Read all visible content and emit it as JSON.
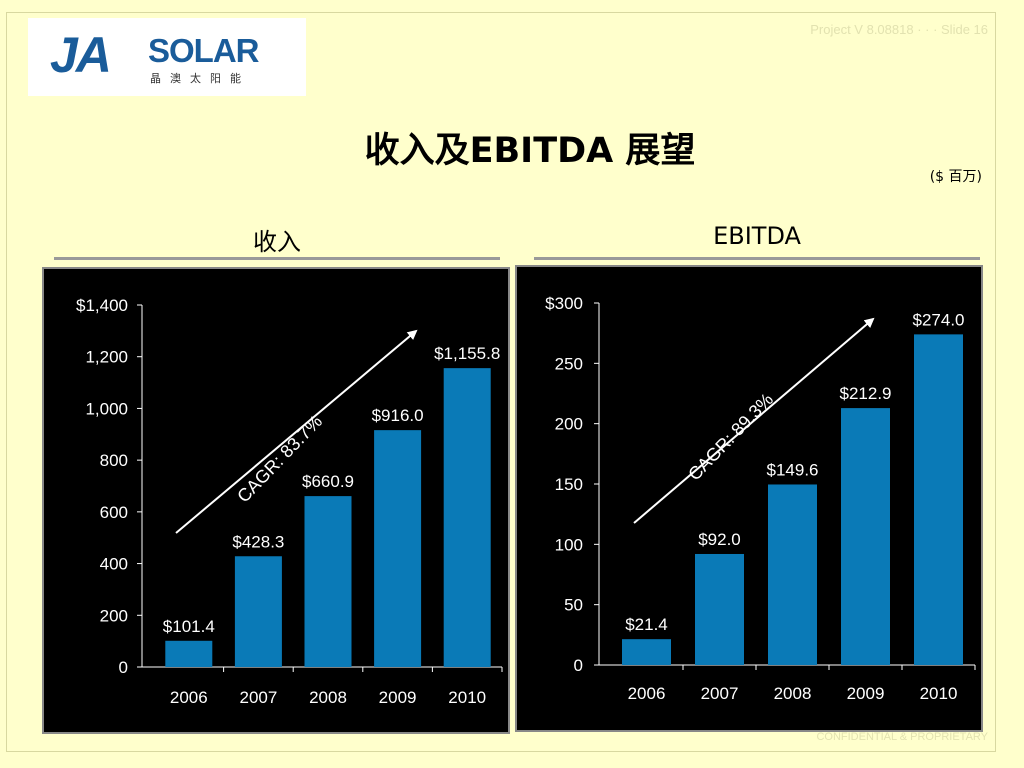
{
  "header": {
    "logo_main": "JA",
    "logo_solar": "SOLAR",
    "logo_cn": "晶澳太阳能",
    "note": "Project V  8.08818   ·  ·  ·  Slide 16"
  },
  "title": "收入及EBITDA 展望",
  "units": "($ 百万)",
  "footer": {
    "note": "CONFIDENTIAL & PROPRIETARY"
  },
  "colors": {
    "background": "#ffffcc",
    "bar": "#0a7ab7",
    "chart_bg": "#000000",
    "text_on_chart": "#ffffff"
  },
  "chart_data": [
    {
      "type": "bar",
      "title": "收入",
      "categories": [
        "2006",
        "2007",
        "2008",
        "2009",
        "2010"
      ],
      "values": [
        101.4,
        428.3,
        660.9,
        916.0,
        1155.8
      ],
      "data_labels": [
        "$101.4",
        "$428.3",
        "$660.9",
        "$916.0",
        "$1,155.8"
      ],
      "ylim": [
        0,
        1400
      ],
      "yticks": [
        0,
        200,
        400,
        600,
        800,
        1000,
        1200,
        1400
      ],
      "ytick_labels": [
        "0",
        "200",
        "400",
        "600",
        "800",
        "1,000",
        "1,200",
        "$1,400"
      ],
      "annotation": "CAGR:  83.7%",
      "grid": false
    },
    {
      "type": "bar",
      "title": "EBITDA",
      "categories": [
        "2006",
        "2007",
        "2008",
        "2009",
        "2010"
      ],
      "values": [
        21.4,
        92.0,
        149.6,
        212.9,
        274.0
      ],
      "data_labels": [
        "$21.4",
        "$92.0",
        "$149.6",
        "$212.9",
        "$274.0"
      ],
      "ylim": [
        0,
        300
      ],
      "yticks": [
        0,
        50,
        100,
        150,
        200,
        250,
        300
      ],
      "ytick_labels": [
        "0",
        "50",
        "100",
        "150",
        "200",
        "250",
        "$300"
      ],
      "annotation": "CAGR:  89.3%",
      "grid": false
    }
  ]
}
